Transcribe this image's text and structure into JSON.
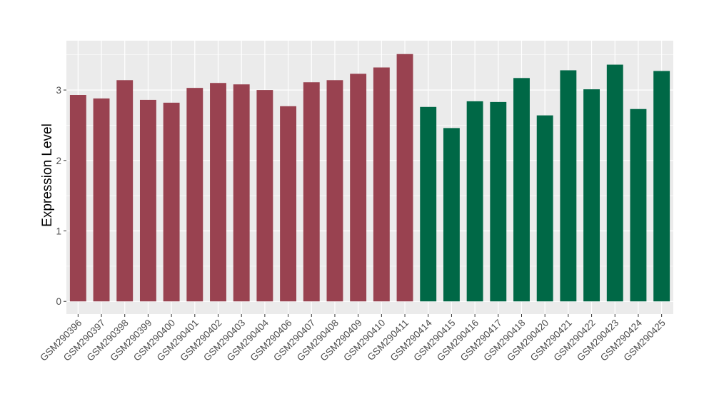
{
  "chart_data": {
    "type": "bar",
    "ylabel": "Expression Level",
    "xlabel": "",
    "ylim": [
      -0.18,
      3.7
    ],
    "yticks": [
      0,
      1,
      2,
      3
    ],
    "grid": true,
    "legend": "none",
    "categories": [
      "GSM290396",
      "GSM290397",
      "GSM290398",
      "GSM290399",
      "GSM290400",
      "GSM290401",
      "GSM290402",
      "GSM290403",
      "GSM290404",
      "GSM290406",
      "GSM290407",
      "GSM290408",
      "GSM290409",
      "GSM290410",
      "GSM290411",
      "GSM290414",
      "GSM290415",
      "GSM290416",
      "GSM290417",
      "GSM290418",
      "GSM290420",
      "GSM290421",
      "GSM290422",
      "GSM290423",
      "GSM290424",
      "GSM290425"
    ],
    "values": [
      2.93,
      2.88,
      3.14,
      2.86,
      2.82,
      3.03,
      3.1,
      3.08,
      3.0,
      2.77,
      3.11,
      3.14,
      3.23,
      3.32,
      3.51,
      2.76,
      2.46,
      2.84,
      2.83,
      3.17,
      2.64,
      3.28,
      3.01,
      3.36,
      2.73,
      3.27
    ],
    "group_colors": [
      "#994250",
      "#994250",
      "#994250",
      "#994250",
      "#994250",
      "#994250",
      "#994250",
      "#994250",
      "#994250",
      "#994250",
      "#994250",
      "#994250",
      "#994250",
      "#994250",
      "#994250",
      "#006846",
      "#006846",
      "#006846",
      "#006846",
      "#006846",
      "#006846",
      "#006846",
      "#006846",
      "#006846",
      "#006846",
      "#006846"
    ],
    "panel_background": "#ebebeb",
    "grid_color": "#ffffff"
  }
}
